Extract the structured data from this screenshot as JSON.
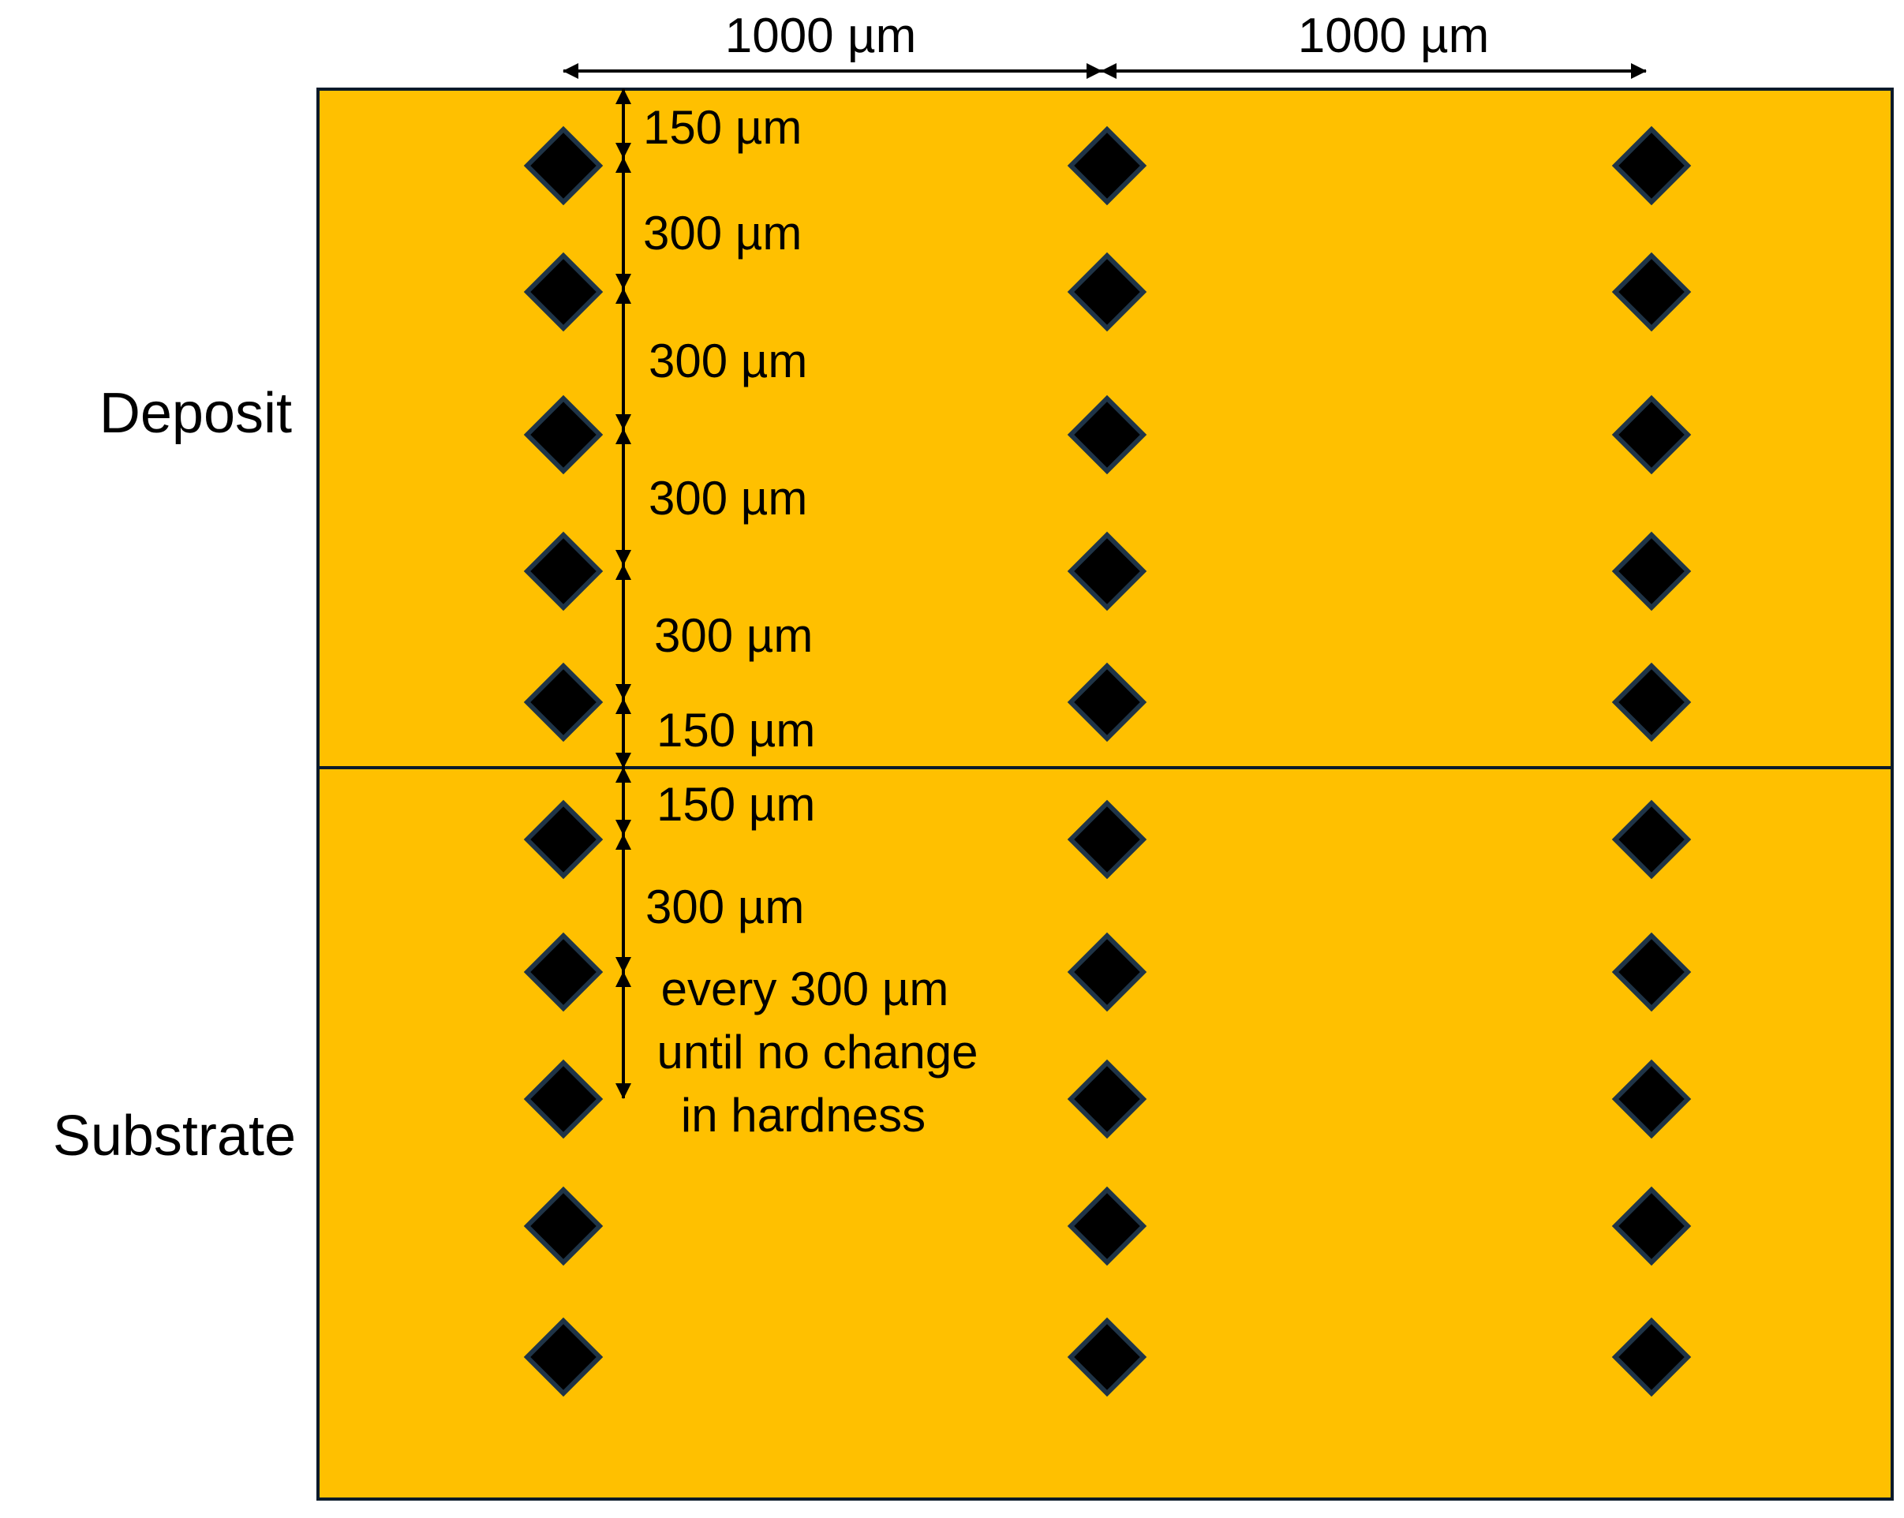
{
  "regions": {
    "deposit_label": "Deposit",
    "substrate_label": "Substrate"
  },
  "horizontal_spacing": {
    "left_label": "1000 µm",
    "right_label": "1000 µm"
  },
  "vertical_spacing": {
    "labels": [
      "150 µm",
      "300 µm",
      "300 µm",
      "300 µm",
      "300 µm",
      "150 µm",
      "150 µm",
      "300 µm"
    ],
    "note_lines": [
      "every 300 µm",
      "until no change",
      "in hardness"
    ]
  },
  "indent_grid": {
    "columns": 3,
    "deposit_rows": 5,
    "substrate_rows": 5
  },
  "colors": {
    "sample_fill": "#FFC000",
    "border": "#0b1a2a",
    "indent_fill": "#000000",
    "indent_stroke": "#1f3447"
  }
}
